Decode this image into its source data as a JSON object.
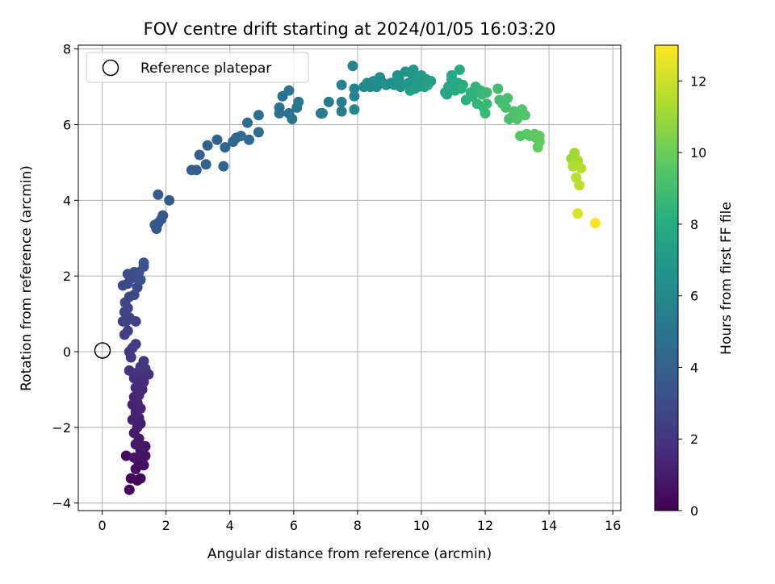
{
  "chart_data": {
    "type": "scatter",
    "title": "FOV centre drift starting at 2024/01/05 16:03:20",
    "xlabel": "Angular distance from reference (arcmin)",
    "ylabel": "Rotation from reference (arcmin)",
    "xlim": [
      -0.75,
      16.25
    ],
    "ylim": [
      -4.2,
      8.1
    ],
    "xticks": [
      0,
      2,
      4,
      6,
      8,
      10,
      12,
      14,
      16
    ],
    "yticks": [
      -4,
      -2,
      0,
      2,
      4,
      6,
      8
    ],
    "grid": true,
    "legend": {
      "placement": "top-left",
      "entries": [
        {
          "label": "Reference platepar",
          "marker": "open-circle"
        }
      ]
    },
    "reference_point": {
      "x": 0,
      "y": 0
    },
    "colorbar": {
      "label": "Hours from first FF file",
      "colormap": "viridis",
      "range": [
        0,
        13
      ],
      "ticks": [
        0,
        2,
        4,
        6,
        8,
        10,
        12
      ]
    },
    "points": [
      [
        0.85,
        -3.65,
        0.1
      ],
      [
        0.9,
        -3.35,
        0.2
      ],
      [
        1.1,
        -3.4,
        0.25
      ],
      [
        1.2,
        -3.35,
        0.3
      ],
      [
        0.75,
        -2.75,
        0.35
      ],
      [
        1.3,
        -3.0,
        0.4
      ],
      [
        1.05,
        -3.1,
        0.5
      ],
      [
        1.15,
        -2.95,
        0.55
      ],
      [
        1.25,
        -2.85,
        0.6
      ],
      [
        1.35,
        -2.75,
        0.65
      ],
      [
        1.0,
        -2.8,
        0.7
      ],
      [
        1.2,
        -2.6,
        0.75
      ],
      [
        1.35,
        -2.5,
        0.8
      ],
      [
        1.05,
        -2.45,
        0.85
      ],
      [
        1.15,
        -2.3,
        0.9
      ],
      [
        1.0,
        -2.15,
        0.95
      ],
      [
        1.1,
        -2.0,
        1.0
      ],
      [
        1.2,
        -1.9,
        1.05
      ],
      [
        0.95,
        -1.8,
        1.1
      ],
      [
        1.15,
        -1.75,
        1.15
      ],
      [
        1.05,
        -1.6,
        1.2
      ],
      [
        1.2,
        -1.5,
        1.25
      ],
      [
        0.95,
        -1.4,
        1.3
      ],
      [
        1.1,
        -1.35,
        1.35
      ],
      [
        1.0,
        -1.2,
        1.4
      ],
      [
        1.15,
        -1.15,
        1.45
      ],
      [
        1.25,
        -1.0,
        1.5
      ],
      [
        1.05,
        -0.95,
        1.55
      ],
      [
        1.15,
        -0.85,
        1.6
      ],
      [
        1.3,
        -0.8,
        1.65
      ],
      [
        1.0,
        -0.7,
        1.7
      ],
      [
        1.25,
        -0.6,
        1.75
      ],
      [
        1.45,
        -0.6,
        1.8
      ],
      [
        0.85,
        -0.5,
        1.85
      ],
      [
        1.1,
        -0.55,
        1.9
      ],
      [
        1.35,
        -0.45,
        1.95
      ],
      [
        1.2,
        -0.4,
        2.0
      ],
      [
        1.3,
        -0.25,
        2.05
      ],
      [
        0.9,
        -0.15,
        2.1
      ],
      [
        0.85,
        0.0,
        2.15
      ],
      [
        0.95,
        0.1,
        2.2
      ],
      [
        1.05,
        0.2,
        2.25
      ],
      [
        0.7,
        0.45,
        2.3
      ],
      [
        0.8,
        0.55,
        2.35
      ],
      [
        0.65,
        0.8,
        2.4
      ],
      [
        0.75,
        0.8,
        2.45
      ],
      [
        0.85,
        0.9,
        2.5
      ],
      [
        1.05,
        0.8,
        2.55
      ],
      [
        0.7,
        1.05,
        2.6
      ],
      [
        0.8,
        1.15,
        2.65
      ],
      [
        0.72,
        1.3,
        2.7
      ],
      [
        0.85,
        1.45,
        2.75
      ],
      [
        1.0,
        1.5,
        2.8
      ],
      [
        1.1,
        1.7,
        2.85
      ],
      [
        0.65,
        1.75,
        2.9
      ],
      [
        0.8,
        1.8,
        2.95
      ],
      [
        0.95,
        1.95,
        3.0
      ],
      [
        0.8,
        2.05,
        3.05
      ],
      [
        1.0,
        2.1,
        3.1
      ],
      [
        1.15,
        2.1,
        3.15
      ],
      [
        1.2,
        1.9,
        3.2
      ],
      [
        1.3,
        2.25,
        3.25
      ],
      [
        1.3,
        2.35,
        3.3
      ],
      [
        1.7,
        3.25,
        3.4
      ],
      [
        1.75,
        3.4,
        3.45
      ],
      [
        1.85,
        3.5,
        3.5
      ],
      [
        1.9,
        3.6,
        3.55
      ],
      [
        1.65,
        3.35,
        3.6
      ],
      [
        2.1,
        4.0,
        3.65
      ],
      [
        1.75,
        4.15,
        3.7
      ],
      [
        2.8,
        4.8,
        3.8
      ],
      [
        2.95,
        4.8,
        3.85
      ],
      [
        3.05,
        5.2,
        3.9
      ],
      [
        3.25,
        4.95,
        3.95
      ],
      [
        3.3,
        5.45,
        4.0
      ],
      [
        3.6,
        5.6,
        4.1
      ],
      [
        3.8,
        4.9,
        4.15
      ],
      [
        3.85,
        5.4,
        4.2
      ],
      [
        4.1,
        5.55,
        4.3
      ],
      [
        4.2,
        5.65,
        4.35
      ],
      [
        4.35,
        5.7,
        4.4
      ],
      [
        4.6,
        5.6,
        4.5
      ],
      [
        4.55,
        6.05,
        4.55
      ],
      [
        4.9,
        5.8,
        4.6
      ],
      [
        4.9,
        6.25,
        4.7
      ],
      [
        5.55,
        6.3,
        4.8
      ],
      [
        5.55,
        6.45,
        4.85
      ],
      [
        5.65,
        6.75,
        4.9
      ],
      [
        5.85,
        6.3,
        4.95
      ],
      [
        5.95,
        6.15,
        5.0
      ],
      [
        5.85,
        6.9,
        5.05
      ],
      [
        6.1,
        6.45,
        5.1
      ],
      [
        6.15,
        6.6,
        5.15
      ],
      [
        6.85,
        6.3,
        5.3
      ],
      [
        6.9,
        6.3,
        5.35
      ],
      [
        7.1,
        6.6,
        5.4
      ],
      [
        7.5,
        6.35,
        5.5
      ],
      [
        7.5,
        6.6,
        5.55
      ],
      [
        7.5,
        7.05,
        5.6
      ],
      [
        7.85,
        7.55,
        5.7
      ],
      [
        7.9,
        6.95,
        5.75
      ],
      [
        7.9,
        6.75,
        5.8
      ],
      [
        7.9,
        6.4,
        5.85
      ],
      [
        8.2,
        7.0,
        6.0
      ],
      [
        8.3,
        7.1,
        6.05
      ],
      [
        8.4,
        7.0,
        6.1
      ],
      [
        8.5,
        7.15,
        6.15
      ],
      [
        8.6,
        7.0,
        6.2
      ],
      [
        8.7,
        7.25,
        6.3
      ],
      [
        8.8,
        7.1,
        6.35
      ],
      [
        8.9,
        7.05,
        6.4
      ],
      [
        9.05,
        7.1,
        6.45
      ],
      [
        9.15,
        7.05,
        6.5
      ],
      [
        9.25,
        7.3,
        6.6
      ],
      [
        9.3,
        7.2,
        6.65
      ],
      [
        9.35,
        7.0,
        6.7
      ],
      [
        9.5,
        7.4,
        6.75
      ],
      [
        9.6,
        7.1,
        6.8
      ],
      [
        9.7,
        7.35,
        6.85
      ],
      [
        9.75,
        7.45,
        6.9
      ],
      [
        9.85,
        7.2,
        6.95
      ],
      [
        9.9,
        7.0,
        7.0
      ],
      [
        10.0,
        7.3,
        7.05
      ],
      [
        10.05,
        7.1,
        7.1
      ],
      [
        10.15,
        7.2,
        7.15
      ],
      [
        9.65,
        6.9,
        7.2
      ],
      [
        9.8,
        6.95,
        7.25
      ],
      [
        10.1,
        7.0,
        7.3
      ],
      [
        10.3,
        7.15,
        7.35
      ],
      [
        10.2,
        7.05,
        7.4
      ],
      [
        10.75,
        6.85,
        7.6
      ],
      [
        10.8,
        6.8,
        7.65
      ],
      [
        10.85,
        7.0,
        7.7
      ],
      [
        10.95,
        7.2,
        7.75
      ],
      [
        10.95,
        7.3,
        7.8
      ],
      [
        11.05,
        6.9,
        7.85
      ],
      [
        11.15,
        7.1,
        7.9
      ],
      [
        11.2,
        7.45,
        8.0
      ],
      [
        11.3,
        7.05,
        8.05
      ],
      [
        11.25,
        6.95,
        8.1
      ],
      [
        11.4,
        6.65,
        8.2
      ],
      [
        11.55,
        6.85,
        8.3
      ],
      [
        11.6,
        6.75,
        8.35
      ],
      [
        11.7,
        7.0,
        8.4
      ],
      [
        11.75,
        6.55,
        8.5
      ],
      [
        11.85,
        6.9,
        8.55
      ],
      [
        11.9,
        6.8,
        8.6
      ],
      [
        11.95,
        6.45,
        8.65
      ],
      [
        12.0,
        6.3,
        8.7
      ],
      [
        12.05,
        6.85,
        8.75
      ],
      [
        12.05,
        6.55,
        8.8
      ],
      [
        12.4,
        6.95,
        8.9
      ],
      [
        12.45,
        6.65,
        8.95
      ],
      [
        12.55,
        6.55,
        9.0
      ],
      [
        12.65,
        6.45,
        9.05
      ],
      [
        12.7,
        6.7,
        9.1
      ],
      [
        12.75,
        6.15,
        9.15
      ],
      [
        12.85,
        6.2,
        9.2
      ],
      [
        12.9,
        6.35,
        9.25
      ],
      [
        13.0,
        6.15,
        9.3
      ],
      [
        13.1,
        6.25,
        9.35
      ],
      [
        13.15,
        6.4,
        9.4
      ],
      [
        13.25,
        6.25,
        9.45
      ],
      [
        13.1,
        5.7,
        9.5
      ],
      [
        13.3,
        5.75,
        9.55
      ],
      [
        13.4,
        5.7,
        9.6
      ],
      [
        13.55,
        5.75,
        9.65
      ],
      [
        13.6,
        5.65,
        9.7
      ],
      [
        13.7,
        5.7,
        9.75
      ],
      [
        13.7,
        5.55,
        9.8
      ],
      [
        13.65,
        5.4,
        9.85
      ],
      [
        14.7,
        5.1,
        11.0
      ],
      [
        14.8,
        5.25,
        11.1
      ],
      [
        14.85,
        4.95,
        11.2
      ],
      [
        14.9,
        5.05,
        11.3
      ],
      [
        14.75,
        4.9,
        11.4
      ],
      [
        15.0,
        4.85,
        11.5
      ],
      [
        14.85,
        4.6,
        11.6
      ],
      [
        14.95,
        4.4,
        11.7
      ],
      [
        14.9,
        3.65,
        12.3
      ],
      [
        15.45,
        3.4,
        12.9
      ]
    ]
  }
}
